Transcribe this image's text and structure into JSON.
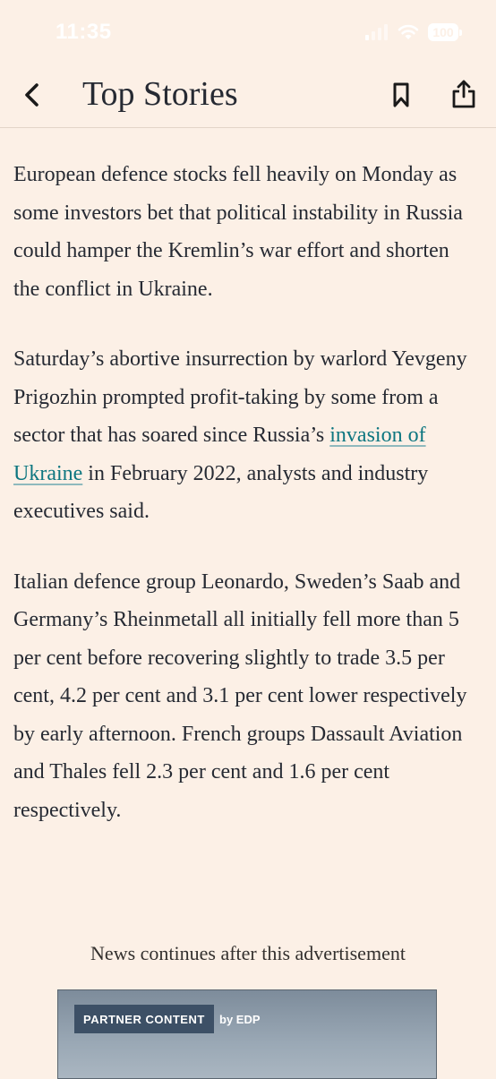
{
  "status_bar": {
    "time": "11:35",
    "battery": "100"
  },
  "nav": {
    "title": "Top Stories",
    "icons": [
      "chevron-left-icon",
      "bookmark-icon",
      "share-icon"
    ]
  },
  "article": {
    "p1": "European defence stocks fell heavily on Monday as some investors bet that political instability in Russia could hamper the Kremlin’s war effort and shorten the conflict in Ukraine.",
    "p2_before": "Saturday’s abortive insurrection by warlord Yevgeny Prigozhin prompted profit-taking by some from a sector that has soared since Russia’s ",
    "p2_link": "invasion of Ukraine",
    "p2_after": " in February 2022, analysts and industry executives said.",
    "p3": "Italian defence group Leonardo, Sweden’s Saab and Germany’s Rheinmetall all initially fell more than 5 per cent before recovering slightly to trade 3.5 per cent, 4.2 per cent and 3.1 per cent lower respectively by early afternoon. French groups Dassault Aviation and Thales fell 2.3 per cent and 1.6 per cent respectively."
  },
  "ad": {
    "notice": "News continues after this advertisement",
    "badge": "PARTNER CONTENT",
    "sponsor": "by EDP"
  },
  "colors": {
    "background": "#fcf0e6",
    "text": "#262a33",
    "link": "#0d7680",
    "badge": "#3d5066"
  }
}
